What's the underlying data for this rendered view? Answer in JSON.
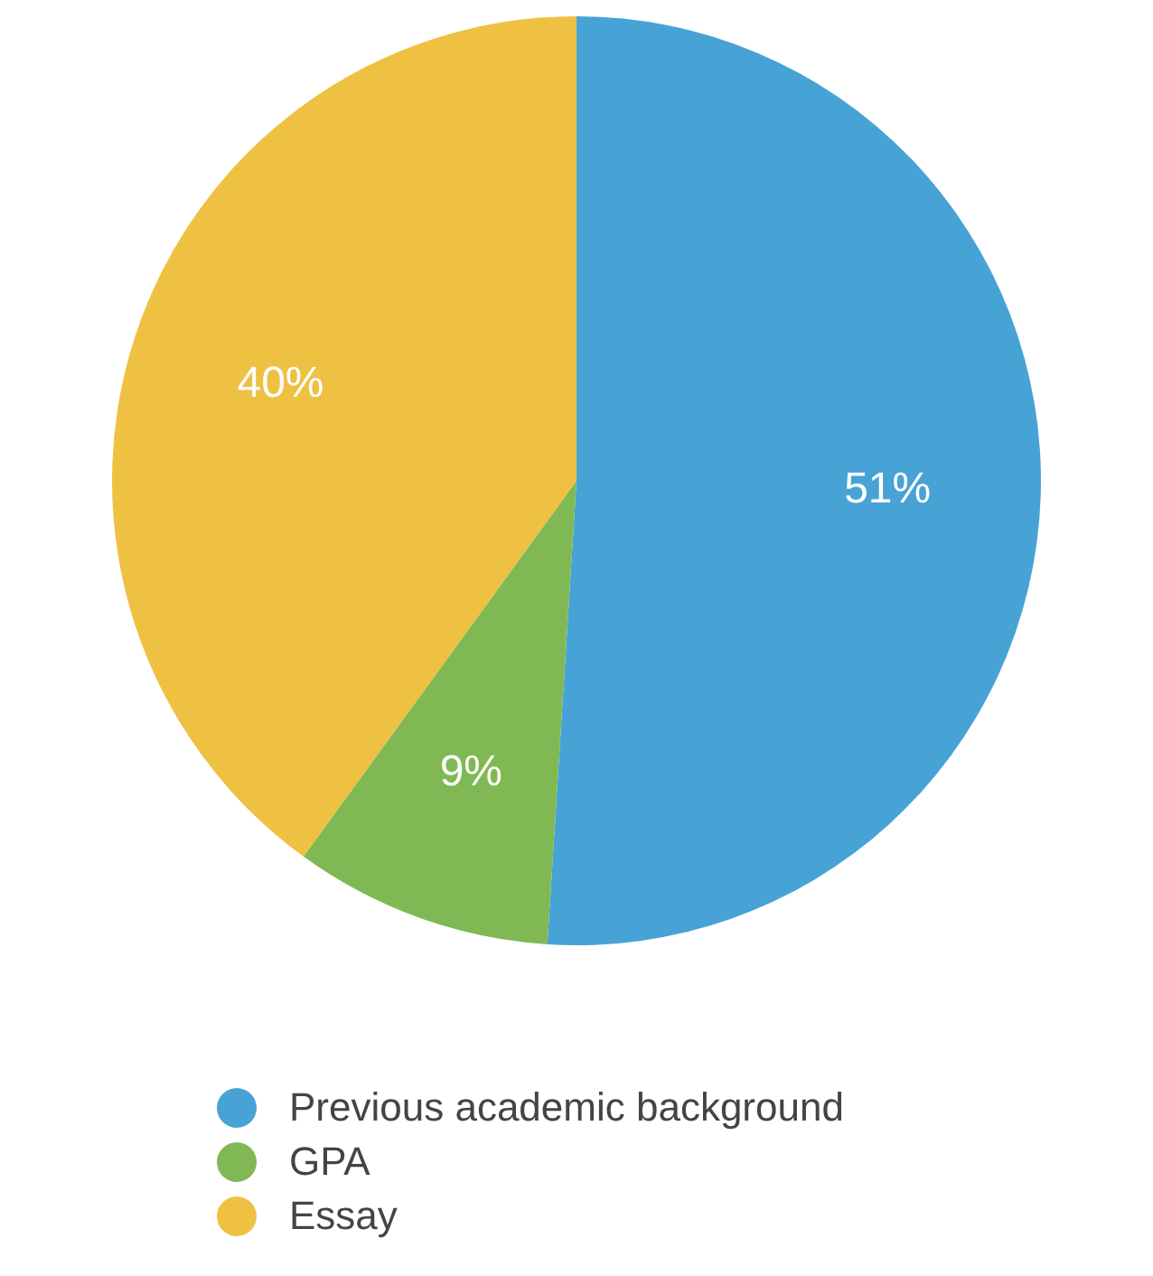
{
  "chart_data": {
    "type": "pie",
    "categories": [
      "Previous academic background",
      "GPA",
      "Essay"
    ],
    "values": [
      51,
      9,
      40
    ],
    "colors": [
      "#47a3d6",
      "#80b954",
      "#eec143"
    ],
    "value_labels": [
      "51%",
      "9%",
      "40%"
    ],
    "legend": "bottom"
  }
}
